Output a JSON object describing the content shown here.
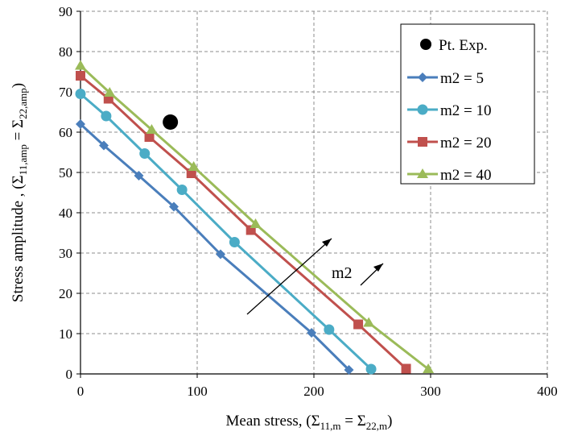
{
  "chart_data": {
    "type": "line",
    "xlabel": {
      "prefix": "Mean stress, (",
      "s1": "11,m",
      "eq": " = ",
      "s2": "22,m",
      "suffix": ")"
    },
    "ylabel": {
      "prefix": "Stress amplitude , (",
      "s1": "11,amp",
      "eq": " = ",
      "s2": "22,amp",
      "suffix": ")"
    },
    "sigma": "Σ",
    "xlim": [
      0,
      400
    ],
    "ylim": [
      0,
      90
    ],
    "xticks": [
      0,
      100,
      200,
      300,
      400
    ],
    "yticks": [
      0,
      10,
      20,
      30,
      40,
      50,
      60,
      70,
      80,
      90
    ],
    "grid": "dashed",
    "legend_position": "top-right",
    "annotation": "m2",
    "experimental_point": {
      "name": "Pt. Exp.",
      "x": 77,
      "y": 62.5,
      "color": "#000000"
    },
    "series": [
      {
        "name": "m2 = 5",
        "marker": "diamond",
        "color": "#4a7ebb",
        "x": [
          0,
          20,
          50,
          80,
          120,
          198,
          230
        ],
        "y": [
          62,
          56.7,
          49.2,
          41.5,
          29.7,
          10.2,
          1
        ]
      },
      {
        "name": "m2 = 10",
        "marker": "circle",
        "color": "#4bacc6",
        "x": [
          0,
          22,
          55,
          87,
          132,
          213,
          249
        ],
        "y": [
          69.5,
          64,
          54.7,
          45.7,
          32.7,
          11,
          1.2
        ]
      },
      {
        "name": "m2 = 20",
        "marker": "square",
        "color": "#c0504d",
        "x": [
          0,
          24,
          59,
          95,
          146,
          238,
          279
        ],
        "y": [
          74,
          68.3,
          58.8,
          49.8,
          35.7,
          12.3,
          1.3
        ]
      },
      {
        "name": "m2 = 40",
        "marker": "triangle",
        "color": "#9bbb59",
        "x": [
          0,
          25,
          61,
          97,
          150,
          247,
          298
        ],
        "y": [
          76.5,
          69.8,
          60.6,
          51.4,
          37.2,
          12.7,
          1.2
        ]
      }
    ]
  }
}
